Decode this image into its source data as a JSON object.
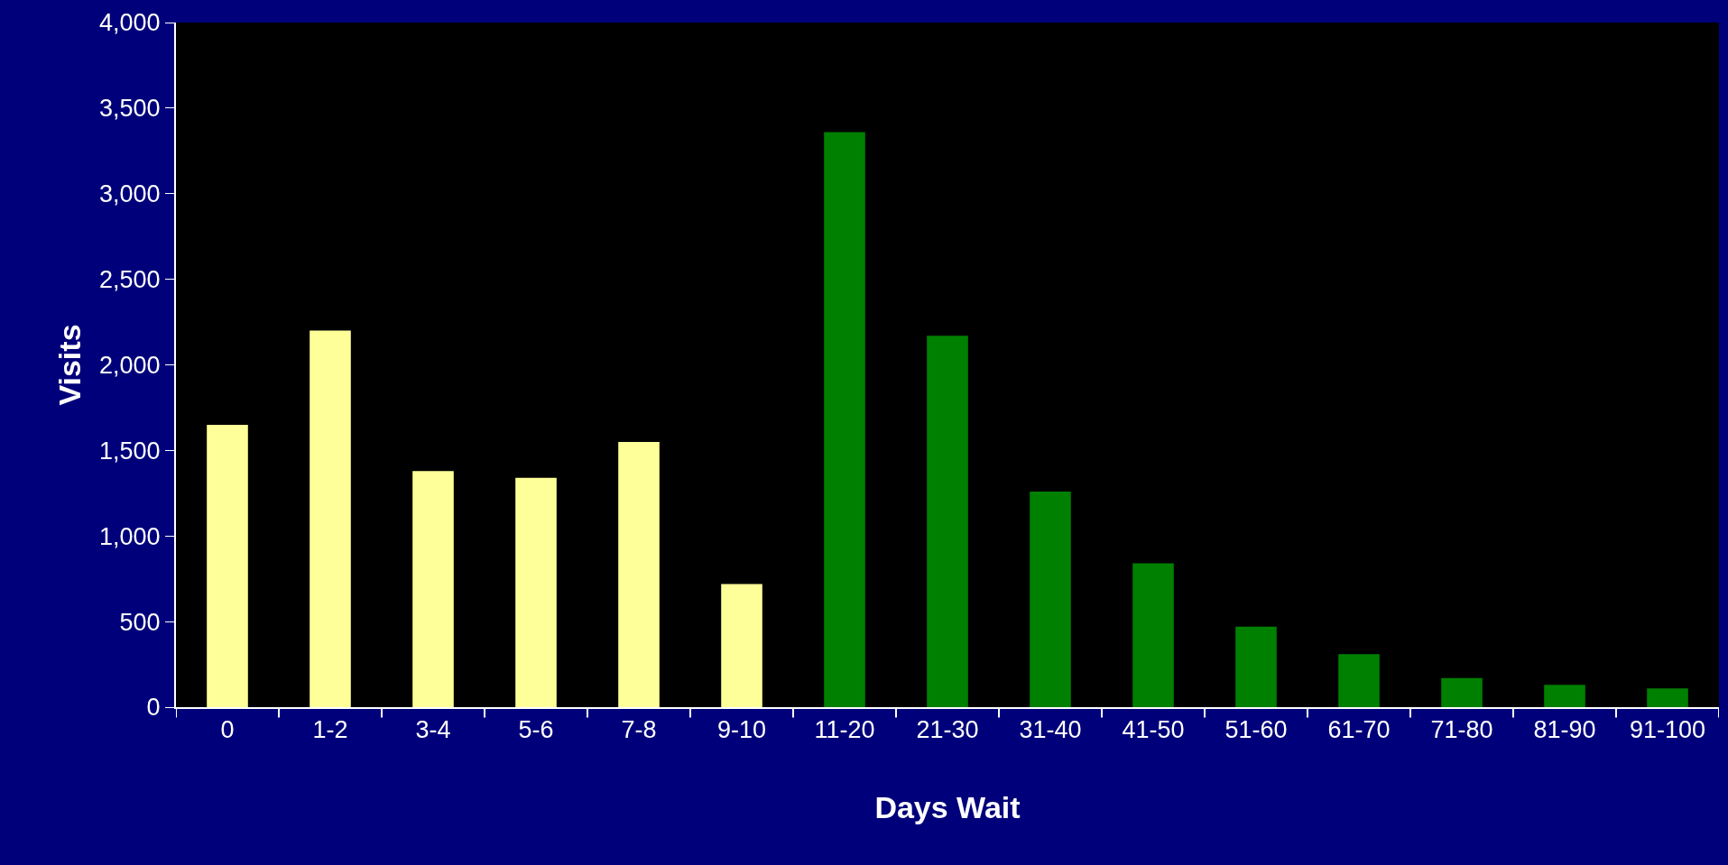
{
  "chart_data": {
    "type": "bar",
    "xlabel": "Days Wait",
    "ylabel": "Visits",
    "categories": [
      "0",
      "1-2",
      "3-4",
      "5-6",
      "7-8",
      "9-10",
      "11-20",
      "21-30",
      "31-40",
      "41-50",
      "51-60",
      "61-70",
      "71-80",
      "81-90",
      "91-100"
    ],
    "values": [
      1650,
      2200,
      1380,
      1340,
      1550,
      720,
      3360,
      2170,
      1260,
      840,
      470,
      310,
      170,
      130,
      110
    ],
    "colors": [
      "#ffff99",
      "#ffff99",
      "#ffff99",
      "#ffff99",
      "#ffff99",
      "#ffff99",
      "#008000",
      "#008000",
      "#008000",
      "#008000",
      "#008000",
      "#008000",
      "#008000",
      "#008000",
      "#008000"
    ],
    "ylim": [
      0,
      4000
    ],
    "yticks": [
      {
        "value": 0,
        "label": "0"
      },
      {
        "value": 500,
        "label": "500"
      },
      {
        "value": 1000,
        "label": "1,000"
      },
      {
        "value": 1500,
        "label": "1,500"
      },
      {
        "value": 2000,
        "label": "2,000"
      },
      {
        "value": 2500,
        "label": "2,500"
      },
      {
        "value": 3000,
        "label": "3,000"
      },
      {
        "value": 3500,
        "label": "3,500"
      },
      {
        "value": 4000,
        "label": "4,000"
      }
    ],
    "grid": false
  }
}
